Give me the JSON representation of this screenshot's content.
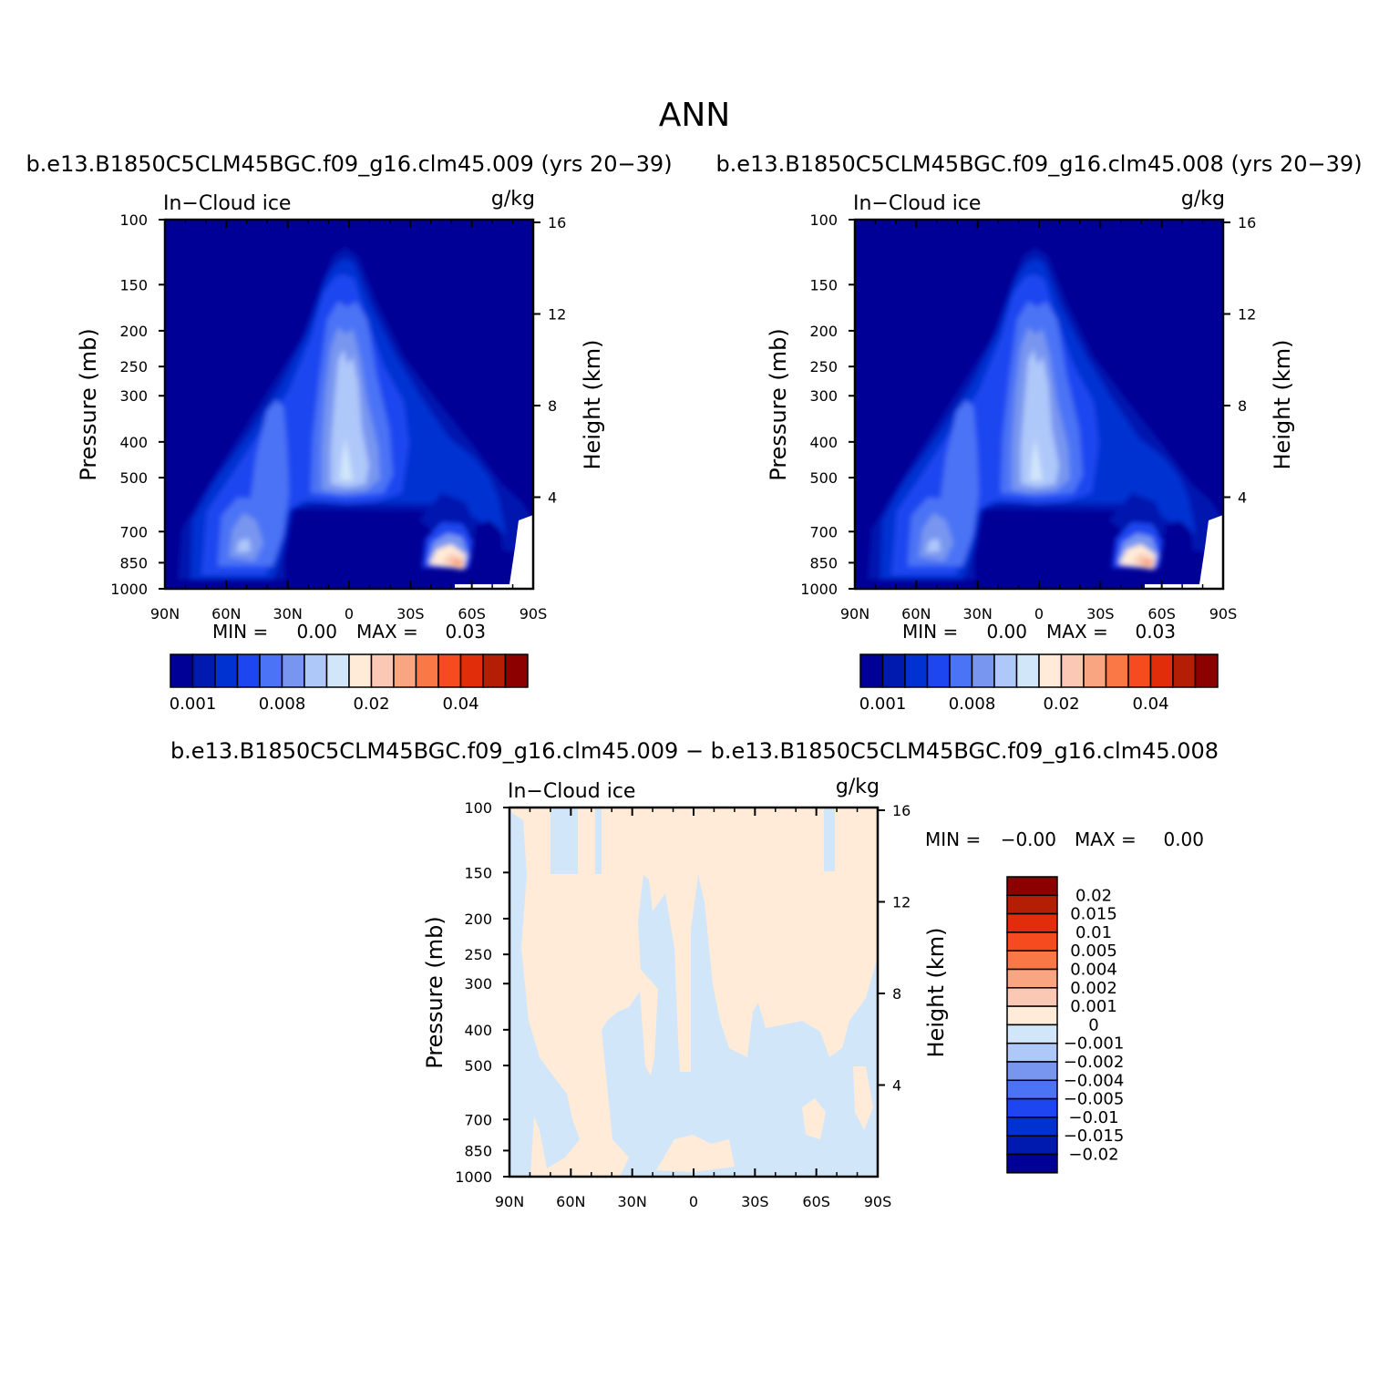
{
  "page": {
    "main_title": "ANN",
    "left_title": "b.e13.B1850C5CLM45BGC.f09_g16.clm45.009 (yrs 20−39)",
    "right_title": "b.e13.B1850C5CLM45BGC.f09_g16.clm45.008 (yrs 20−39)",
    "diff_title": "b.e13.B1850C5CLM45BGC.f09_g16.clm45.009 − b.e13.B1850C5CLM45BGC.f09_g16.clm45.008"
  },
  "colors": {
    "abs_scale": [
      "#000096",
      "#0019af",
      "#0032d2",
      "#1e46f0",
      "#4b73f5",
      "#7896f0",
      "#afc8fa",
      "#d2e6fa",
      "#ffebd7",
      "#fac8b4",
      "#faa582",
      "#fa7846",
      "#f54b1e",
      "#e12d0a",
      "#b41e05",
      "#8c0000"
    ],
    "diff_scale": [
      "#000096",
      "#0019af",
      "#0032d2",
      "#1e46f0",
      "#4b73f5",
      "#7896f0",
      "#afc8fa",
      "#d2e6fa",
      "#ffebd7",
      "#fac8b4",
      "#faa582",
      "#fa7846",
      "#f54b1e",
      "#e12d0a",
      "#b41e05",
      "#8c0000"
    ]
  },
  "chart_data": [
    {
      "type": "heatmap",
      "panel": "left",
      "variable_label": "In−Cloud ice",
      "units_label": "g/kg",
      "ylabel": "Pressure (mb)",
      "ylabel_right": "Height (km)",
      "x_ticks": [
        "90N",
        "60N",
        "30N",
        "0",
        "30S",
        "60S",
        "90S"
      ],
      "y_ticks": [
        "100",
        "150",
        "200",
        "250",
        "300",
        "400",
        "500",
        "700",
        "850",
        "1000"
      ],
      "y_ticks_right": [
        "16",
        "12",
        "8",
        "4"
      ],
      "ylim": [
        1000,
        100
      ],
      "y_scale": "log",
      "min_label": "MIN =",
      "min_value": "0.00",
      "max_label": "MAX =",
      "max_value": "0.03",
      "colorbar_labels": [
        "0.001",
        "0.008",
        "0.02",
        "0.04"
      ]
    },
    {
      "type": "heatmap",
      "panel": "right",
      "variable_label": "In−Cloud ice",
      "units_label": "g/kg",
      "ylabel": "Pressure (mb)",
      "ylabel_right": "Height (km)",
      "x_ticks": [
        "90N",
        "60N",
        "30N",
        "0",
        "30S",
        "60S",
        "90S"
      ],
      "y_ticks": [
        "100",
        "150",
        "200",
        "250",
        "300",
        "400",
        "500",
        "700",
        "850",
        "1000"
      ],
      "y_ticks_right": [
        "16",
        "12",
        "8",
        "4"
      ],
      "ylim": [
        1000,
        100
      ],
      "y_scale": "log",
      "min_label": "MIN =",
      "min_value": "0.00",
      "max_label": "MAX =",
      "max_value": "0.03",
      "colorbar_labels": [
        "0.001",
        "0.008",
        "0.02",
        "0.04"
      ]
    },
    {
      "type": "heatmap",
      "panel": "difference",
      "variable_label": "In−Cloud ice",
      "units_label": "g/kg",
      "ylabel": "Pressure (mb)",
      "ylabel_right": "Height (km)",
      "x_ticks": [
        "90N",
        "60N",
        "30N",
        "0",
        "30S",
        "60S",
        "90S"
      ],
      "y_ticks": [
        "100",
        "150",
        "200",
        "250",
        "300",
        "400",
        "500",
        "700",
        "850",
        "1000"
      ],
      "y_ticks_right": [
        "16",
        "12",
        "8",
        "4"
      ],
      "ylim": [
        1000,
        100
      ],
      "y_scale": "log",
      "min_label": "MIN =",
      "min_value": "−0.00",
      "max_label": "MAX =",
      "max_value": "0.00",
      "colorbar_labels": [
        "0.02",
        "0.015",
        "0.01",
        "0.005",
        "0.004",
        "0.002",
        "0.001",
        "0",
        "−0.001",
        "−0.002",
        "−0.004",
        "−0.005",
        "−0.01",
        "−0.015",
        "−0.02"
      ]
    }
  ]
}
